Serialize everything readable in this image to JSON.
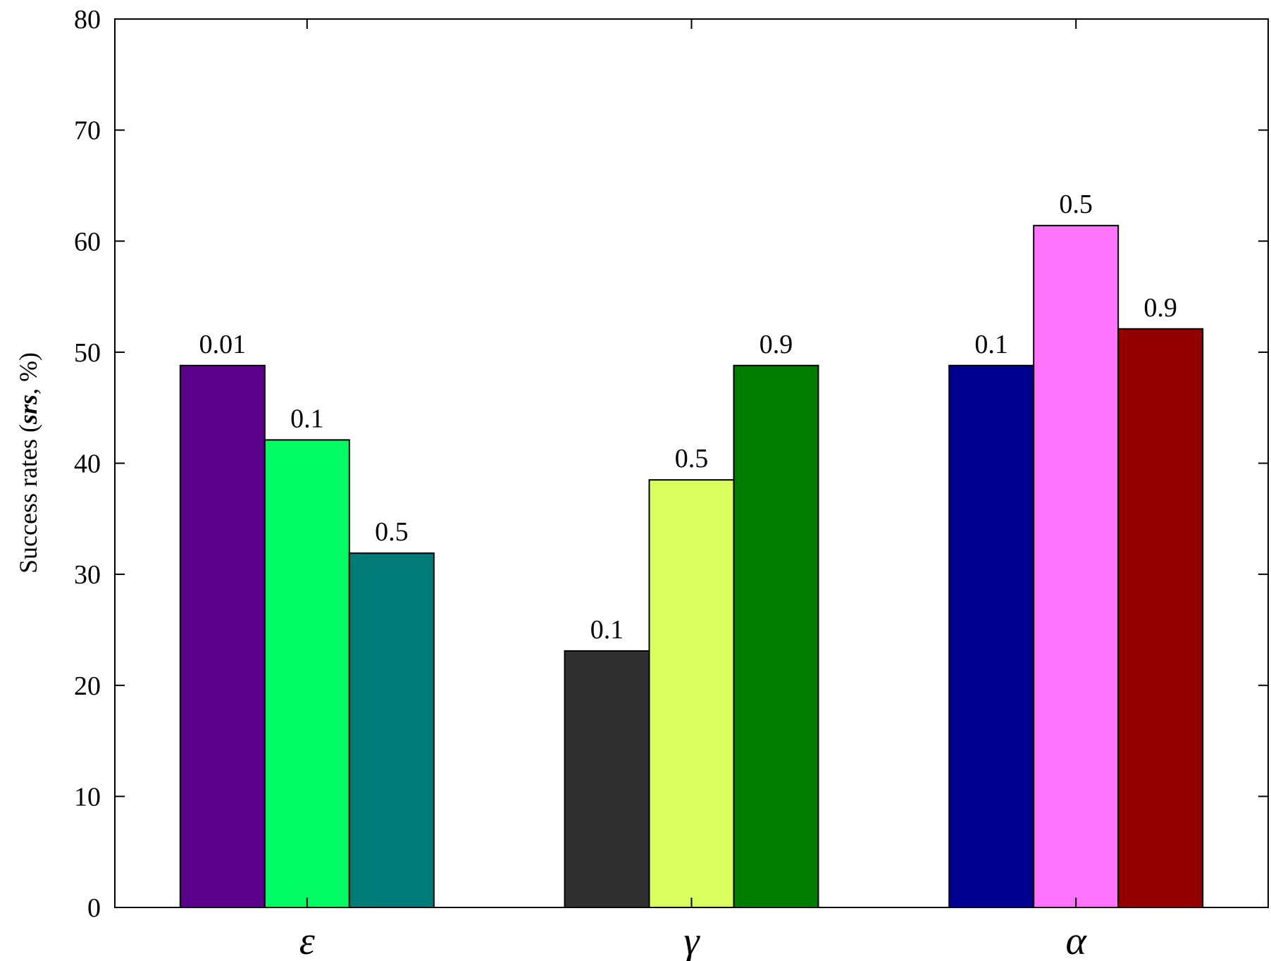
{
  "chart_data": {
    "type": "bar",
    "ylabel_parts": [
      "Success rates (",
      "srs",
      ", %)"
    ],
    "ylim": [
      0,
      80
    ],
    "yticks": [
      0,
      10,
      20,
      30,
      40,
      50,
      60,
      70,
      80
    ],
    "grid": false,
    "groups": [
      {
        "category": "ε",
        "bars": [
          {
            "label": "0.01",
            "value": 48.8,
            "color": "#5b008b"
          },
          {
            "label": "0.1",
            "value": 42.1,
            "color": "#00fb62"
          },
          {
            "label": "0.5",
            "value": 31.9,
            "color": "#007b78"
          }
        ]
      },
      {
        "category": "γ",
        "bars": [
          {
            "label": "0.1",
            "value": 23.1,
            "color": "#2f2f2f"
          },
          {
            "label": "0.5",
            "value": 38.5,
            "color": "#d8ff5e"
          },
          {
            "label": "0.9",
            "value": 48.8,
            "color": "#007c00"
          }
        ]
      },
      {
        "category": "α",
        "bars": [
          {
            "label": "0.1",
            "value": 48.8,
            "color": "#000090"
          },
          {
            "label": "0.5",
            "value": 61.4,
            "color": "#ff74fd"
          },
          {
            "label": "0.9",
            "value": 52.1,
            "color": "#920000"
          }
        ]
      }
    ]
  }
}
